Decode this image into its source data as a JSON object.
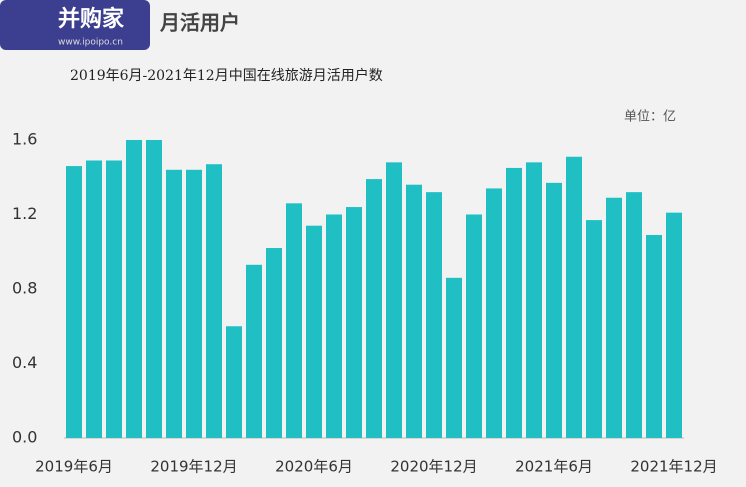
{
  "chart_data": {
    "type": "bar",
    "title": "月活用户",
    "subtitle": "2019年6月-2021年12月中国在线旅游月活用户数",
    "unit": "单位：亿",
    "watermark": {
      "brand": "并购家",
      "url": "www.ipoipo.cn"
    },
    "categories": [
      "2019年6月",
      null,
      null,
      null,
      null,
      null,
      "2019年12月",
      null,
      null,
      null,
      null,
      null,
      "2020年6月",
      null,
      null,
      null,
      null,
      null,
      "2020年12月",
      null,
      null,
      null,
      null,
      null,
      "2021年6月",
      null,
      null,
      null,
      null,
      null,
      "2021年12月"
    ],
    "values": [
      1.46,
      1.49,
      1.49,
      1.6,
      1.6,
      1.44,
      1.44,
      1.47,
      0.6,
      0.93,
      1.02,
      1.26,
      1.14,
      1.2,
      1.24,
      1.39,
      1.48,
      1.36,
      1.32,
      0.86,
      1.2,
      1.34,
      1.45,
      1.48,
      1.37,
      1.51,
      1.17,
      1.29,
      1.32,
      1.09,
      1.21
    ],
    "color": "#1fbfc4",
    "ylim": [
      0,
      1.6
    ],
    "yticks": [
      {
        "value": 0,
        "label": "0.0"
      },
      0.4,
      0.8,
      1.2,
      1.6
    ]
  }
}
